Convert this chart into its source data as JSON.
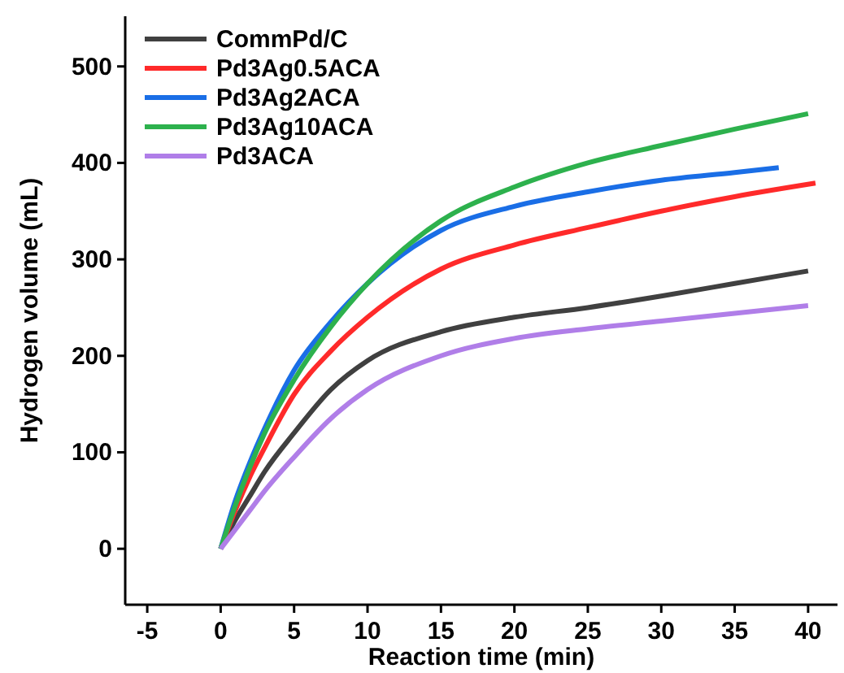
{
  "chart_data": {
    "type": "line",
    "xlabel": "Reaction time (min)",
    "ylabel": "Hydrogen volume (mL)",
    "xlim": [
      -6.5,
      42
    ],
    "ylim": [
      -58,
      552
    ],
    "xticks": [
      -5,
      0,
      5,
      10,
      15,
      20,
      25,
      30,
      35,
      40
    ],
    "yticks": [
      0,
      100,
      200,
      300,
      400,
      500
    ],
    "legend": "top left",
    "grid": false,
    "marker": "none",
    "line_style": "solid",
    "series": [
      {
        "name": "CommPd/C",
        "color": "#404040",
        "x": [
          0,
          1,
          2,
          3,
          5,
          7.5,
          10,
          15,
          20,
          25,
          30,
          35,
          40
        ],
        "values": [
          0,
          30,
          55,
          80,
          120,
          165,
          195,
          225,
          240,
          250,
          262,
          275,
          288
        ]
      },
      {
        "name": "Pd3Ag0.5ACA",
        "color": "#ff2a2a",
        "x": [
          0,
          1,
          2,
          3,
          5,
          7.5,
          10,
          15,
          20,
          25,
          30,
          35,
          40.5
        ],
        "values": [
          0,
          40,
          75,
          105,
          160,
          205,
          240,
          290,
          315,
          333,
          350,
          365,
          379
        ]
      },
      {
        "name": "Pd3Ag2ACA",
        "color": "#1a6ee6",
        "x": [
          0,
          1,
          2,
          3,
          5,
          7.5,
          10,
          15,
          20,
          25,
          30,
          35,
          38
        ],
        "values": [
          0,
          50,
          90,
          125,
          185,
          235,
          275,
          330,
          355,
          370,
          382,
          390,
          395
        ]
      },
      {
        "name": "Pd3Ag10ACA",
        "color": "#2db14d",
        "x": [
          0,
          1,
          2,
          3,
          5,
          7.5,
          10,
          15,
          20,
          25,
          30,
          35,
          40
        ],
        "values": [
          0,
          45,
          85,
          120,
          175,
          230,
          275,
          340,
          375,
          400,
          418,
          435,
          451
        ]
      },
      {
        "name": "Pd3ACA",
        "color": "#b07ee8",
        "x": [
          0,
          1,
          2,
          3,
          5,
          7.5,
          10,
          15,
          20,
          25,
          30,
          35,
          40
        ],
        "values": [
          0,
          20,
          40,
          60,
          95,
          135,
          165,
          200,
          218,
          228,
          236,
          244,
          252
        ]
      }
    ]
  }
}
